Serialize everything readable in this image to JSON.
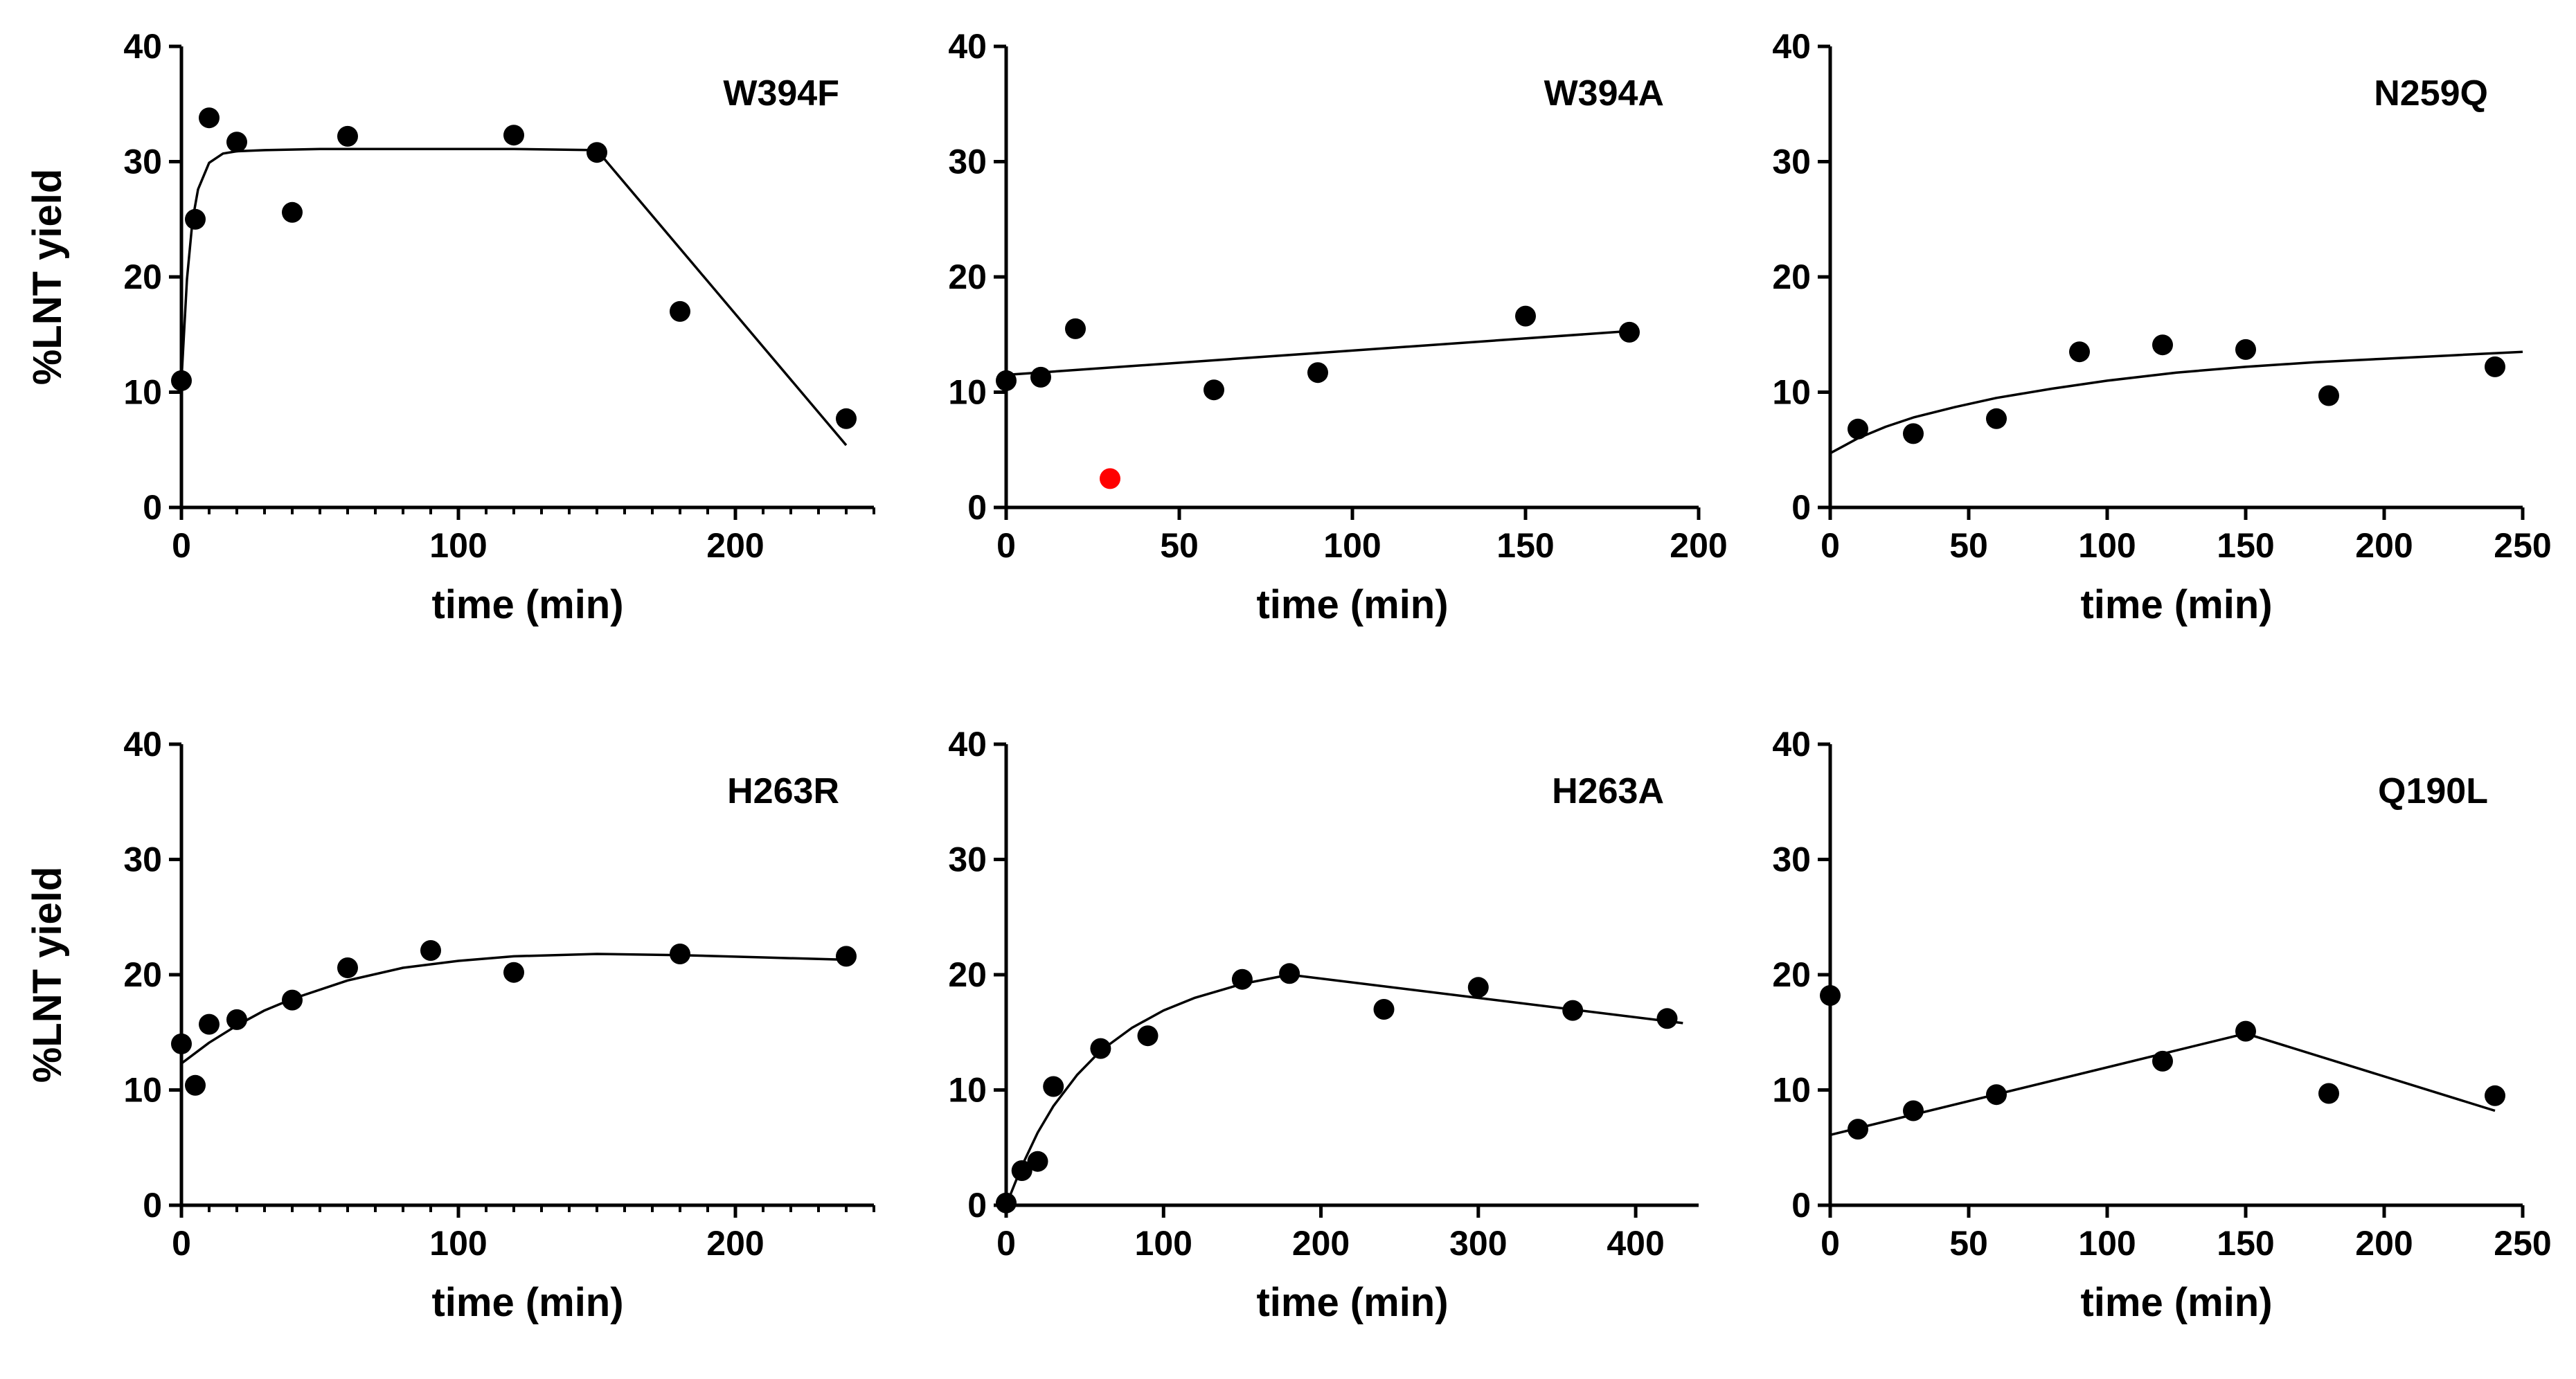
{
  "figure": {
    "background": "#ffffff",
    "mark_color": "#000000",
    "highlight_color": "#ff0000"
  },
  "chart_data": [
    {
      "type": "scatter",
      "panel_label": "W394F",
      "xlabel": "time (min)",
      "ylabel": "%LNT yield",
      "xlim": [
        0,
        250
      ],
      "ylim": [
        0,
        40
      ],
      "xticks": [
        0,
        100,
        200
      ],
      "xminor_ticks": [
        10,
        20,
        30,
        40,
        50,
        60,
        70,
        80,
        90,
        110,
        120,
        130,
        140,
        150,
        160,
        170,
        180,
        190,
        210,
        220,
        230,
        240,
        250
      ],
      "yticks": [
        0,
        10,
        20,
        30,
        40
      ],
      "grid": false,
      "series": [
        {
          "x": [
            0,
            5,
            10,
            20,
            40,
            60,
            120,
            150,
            180,
            240
          ],
          "y": [
            11.0,
            25.0,
            33.8,
            31.7,
            25.6,
            32.2,
            32.3,
            30.8,
            17.0,
            7.7
          ],
          "highlighted": []
        }
      ],
      "fit": {
        "x": [
          0,
          2,
          4,
          6,
          10,
          15,
          20,
          30,
          50,
          80,
          120,
          150,
          240
        ],
        "y": [
          11.0,
          19.8,
          24.9,
          27.6,
          29.9,
          30.7,
          30.9,
          31.0,
          31.1,
          31.1,
          31.1,
          31.0,
          5.4
        ]
      }
    },
    {
      "type": "scatter",
      "panel_label": "W394A",
      "xlabel": "time (min)",
      "ylabel": "",
      "xlim": [
        0,
        200
      ],
      "ylim": [
        0,
        40
      ],
      "xticks": [
        0,
        50,
        100,
        150,
        200
      ],
      "xminor_ticks": [],
      "yticks": [
        0,
        10,
        20,
        30,
        40
      ],
      "grid": false,
      "series": [
        {
          "x": [
            0,
            10,
            20,
            30,
            60,
            90,
            150,
            180
          ],
          "y": [
            11.0,
            11.3,
            15.5,
            2.5,
            10.2,
            11.7,
            16.6,
            15.2
          ],
          "highlighted": [
            3
          ]
        }
      ],
      "fit": {
        "x": [
          0,
          180
        ],
        "y": [
          11.5,
          15.3
        ]
      }
    },
    {
      "type": "scatter",
      "panel_label": "N259Q",
      "xlabel": "time (min)",
      "ylabel": "",
      "xlim": [
        0,
        250
      ],
      "ylim": [
        0,
        40
      ],
      "xticks": [
        0,
        50,
        100,
        150,
        200,
        250
      ],
      "xminor_ticks": [],
      "yticks": [
        0,
        10,
        20,
        30,
        40
      ],
      "grid": false,
      "series": [
        {
          "x": [
            10,
            30,
            60,
            90,
            120,
            150,
            180,
            240
          ],
          "y": [
            6.8,
            6.4,
            7.7,
            13.5,
            14.1,
            13.7,
            9.7,
            12.2
          ],
          "highlighted": []
        }
      ],
      "fit": {
        "x": [
          0,
          10,
          20,
          30,
          45,
          60,
          80,
          100,
          125,
          150,
          175,
          200,
          225,
          250
        ],
        "y": [
          4.7,
          6.0,
          7.0,
          7.8,
          8.7,
          9.5,
          10.3,
          11.0,
          11.7,
          12.2,
          12.6,
          12.9,
          13.2,
          13.5
        ]
      }
    },
    {
      "type": "scatter",
      "panel_label": "H263R",
      "xlabel": "time (min)",
      "ylabel": "%LNT yield",
      "xlim": [
        0,
        250
      ],
      "ylim": [
        0,
        40
      ],
      "xticks": [
        0,
        100,
        200
      ],
      "xminor_ticks": [
        10,
        20,
        30,
        40,
        50,
        60,
        70,
        80,
        90,
        110,
        120,
        130,
        140,
        150,
        160,
        170,
        180,
        190,
        210,
        220,
        230,
        240,
        250
      ],
      "yticks": [
        0,
        10,
        20,
        30,
        40
      ],
      "grid": false,
      "series": [
        {
          "x": [
            0,
            5,
            10,
            20,
            40,
            60,
            90,
            120,
            180,
            240
          ],
          "y": [
            14.0,
            10.4,
            15.7,
            16.1,
            17.8,
            20.6,
            22.1,
            20.2,
            21.8,
            21.6
          ],
          "highlighted": []
        }
      ],
      "fit": {
        "x": [
          0,
          10,
          20,
          30,
          40,
          60,
          80,
          100,
          120,
          150,
          180,
          210,
          240
        ],
        "y": [
          12.3,
          14.1,
          15.6,
          16.9,
          17.9,
          19.5,
          20.6,
          21.2,
          21.6,
          21.8,
          21.7,
          21.5,
          21.3
        ]
      }
    },
    {
      "type": "scatter",
      "panel_label": "H263A",
      "xlabel": "time (min)",
      "ylabel": "",
      "xlim": [
        0,
        440
      ],
      "ylim": [
        0,
        40
      ],
      "xticks": [
        0,
        100,
        200,
        300,
        400
      ],
      "xminor_ticks": [],
      "yticks": [
        0,
        10,
        20,
        30,
        40
      ],
      "grid": false,
      "series": [
        {
          "x": [
            0,
            10,
            20,
            30,
            60,
            90,
            150,
            180,
            240,
            300,
            360,
            420
          ],
          "y": [
            0.2,
            3.0,
            3.8,
            10.3,
            13.6,
            14.7,
            19.6,
            20.1,
            17.0,
            18.9,
            16.9,
            16.2
          ],
          "highlighted": []
        }
      ],
      "fit": {
        "x": [
          0,
          10,
          20,
          30,
          45,
          60,
          80,
          100,
          120,
          150,
          180,
          430
        ],
        "y": [
          0.0,
          3.4,
          6.3,
          8.6,
          11.3,
          13.4,
          15.4,
          16.9,
          18.0,
          19.2,
          20.0,
          15.8
        ]
      }
    },
    {
      "type": "scatter",
      "panel_label": "Q190L",
      "xlabel": "time (min)",
      "ylabel": "",
      "xlim": [
        0,
        250
      ],
      "ylim": [
        0,
        40
      ],
      "xticks": [
        0,
        50,
        100,
        150,
        200,
        250
      ],
      "xminor_ticks": [],
      "yticks": [
        0,
        10,
        20,
        30,
        40
      ],
      "grid": false,
      "series": [
        {
          "x": [
            0,
            10,
            30,
            60,
            120,
            150,
            180,
            240
          ],
          "y": [
            18.2,
            6.6,
            8.2,
            9.6,
            12.5,
            15.1,
            9.7,
            9.5
          ],
          "highlighted": []
        }
      ],
      "fit": {
        "x": [
          0,
          150,
          240
        ],
        "y": [
          6.1,
          14.9,
          8.2
        ]
      }
    }
  ]
}
